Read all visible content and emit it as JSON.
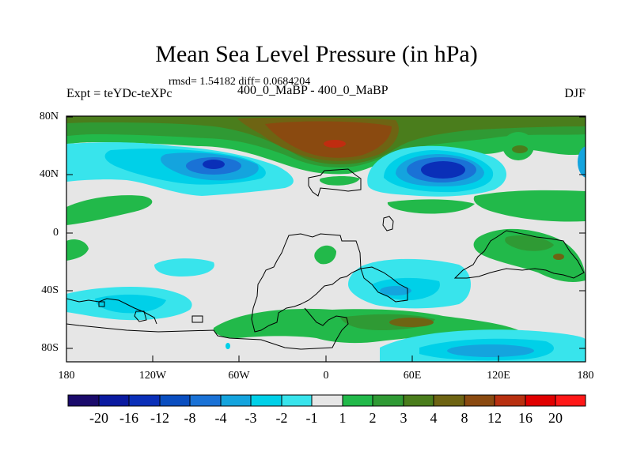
{
  "title": "Mean Sea Level Pressure (in hPa)",
  "stats": "rmsd= 1.54182 diff= 0.0684204",
  "left_label": "Expt = teYDc-teXPc",
  "center_label": "400_0_MaBP - 400_0_MaBP",
  "right_label": "DJF",
  "lat_ticks": [
    "80N",
    "40N",
    "0",
    "40S",
    "80S"
  ],
  "lon_ticks": [
    "180",
    "120W",
    "60W",
    "0",
    "60E",
    "120E",
    "180"
  ],
  "colorbar": {
    "labels": [
      "-20",
      "-16",
      "-12",
      "-8",
      "-4",
      "-3",
      "-2",
      "-1",
      "1",
      "2",
      "3",
      "4",
      "8",
      "12",
      "16",
      "20"
    ],
    "colors": [
      "#1a0a6b",
      "#0a1aa0",
      "#0a2fb8",
      "#0a4ec0",
      "#1a72d6",
      "#14a4de",
      "#00d0e8",
      "#38e4ec",
      "#e6e6e6",
      "#22b94a",
      "#2f9a34",
      "#4a7d1c",
      "#6e6413",
      "#8a4a10",
      "#b83010",
      "#e00000",
      "#ff1818"
    ]
  }
}
